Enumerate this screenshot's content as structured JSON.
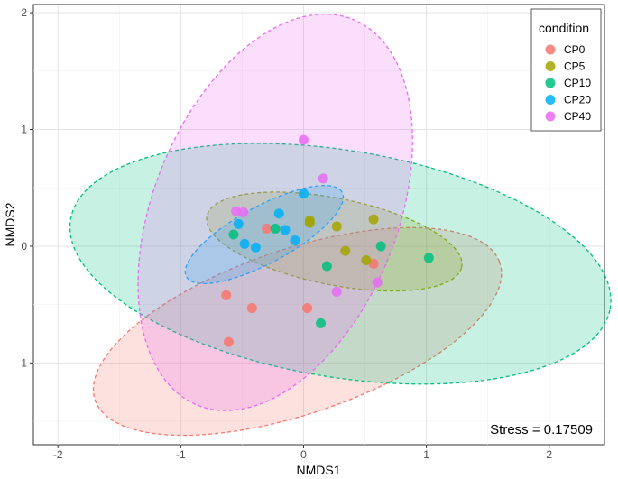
{
  "chart_data": {
    "type": "scatter",
    "title": "",
    "xlabel": "NMDS1",
    "ylabel": "NMDS2",
    "xlim": [
      -2.2,
      2.45
    ],
    "ylim": [
      -1.7,
      2.07
    ],
    "x_ticks": [
      -2,
      -1,
      0,
      1,
      2
    ],
    "y_ticks": [
      -1,
      0,
      1,
      2
    ],
    "x_tick_labels": [
      "-2",
      "-1",
      "0",
      "1",
      "2"
    ],
    "y_tick_labels": [
      "-1",
      "0",
      "1",
      "2"
    ],
    "grid": true,
    "legend_position": "top-right",
    "legend_title": "condition",
    "annotation": "Stress = 0.17509",
    "series": [
      {
        "name": "CP0",
        "color": "#F8766D",
        "points": [
          [
            -0.3,
            0.15
          ],
          [
            -0.63,
            -0.42
          ],
          [
            -0.42,
            -0.53
          ],
          [
            0.03,
            -0.53
          ],
          [
            -0.61,
            -0.82
          ],
          [
            0.57,
            -0.15
          ]
        ],
        "ellipse": {
          "cx": -0.05,
          "cy": -0.73,
          "rx": 1.75,
          "ry": 0.7,
          "angle_deg": 20
        }
      },
      {
        "name": "CP5",
        "color": "#A3A500",
        "points": [
          [
            0.05,
            0.2
          ],
          [
            0.27,
            0.17
          ],
          [
            0.57,
            0.23
          ],
          [
            0.34,
            -0.04
          ],
          [
            0.51,
            -0.12
          ],
          [
            0.05,
            0.22
          ]
        ],
        "ellipse": {
          "cx": 0.25,
          "cy": 0.04,
          "rx": 1.06,
          "ry": 0.37,
          "angle_deg": -12
        }
      },
      {
        "name": "CP10",
        "color": "#00BF7D",
        "points": [
          [
            1.02,
            -0.1
          ],
          [
            0.63,
            0.0
          ],
          [
            0.19,
            -0.17
          ],
          [
            0.14,
            -0.66
          ],
          [
            -0.23,
            0.15
          ],
          [
            -0.57,
            0.1
          ]
        ],
        "ellipse": {
          "cx": 0.3,
          "cy": -0.15,
          "rx": 2.23,
          "ry": 0.97,
          "angle_deg": -10
        }
      },
      {
        "name": "CP20",
        "color": "#00B0F6",
        "points": [
          [
            -0.53,
            0.19
          ],
          [
            -0.2,
            0.28
          ],
          [
            -0.15,
            0.14
          ],
          [
            -0.48,
            0.02
          ],
          [
            -0.39,
            -0.01
          ],
          [
            -0.07,
            0.05
          ],
          [
            0.0,
            0.45
          ]
        ],
        "ellipse": {
          "cx": -0.32,
          "cy": 0.1,
          "rx": 0.73,
          "ry": 0.24,
          "angle_deg": 30
        }
      },
      {
        "name": "CP40",
        "color": "#E76BF3",
        "points": [
          [
            0.0,
            0.91
          ],
          [
            0.16,
            0.58
          ],
          [
            -0.55,
            0.3
          ],
          [
            -0.49,
            0.29
          ],
          [
            0.27,
            -0.39
          ],
          [
            0.6,
            -0.31
          ]
        ],
        "ellipse": {
          "cx": -0.23,
          "cy": 0.29,
          "rx": 1.77,
          "ry": 1.0,
          "angle_deg": 70
        }
      }
    ]
  }
}
